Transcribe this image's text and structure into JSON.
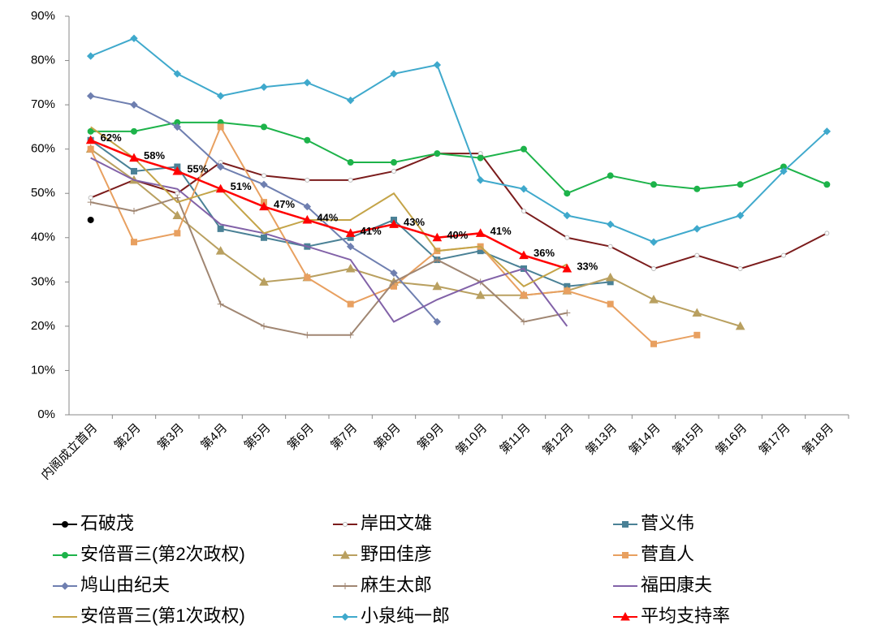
{
  "chart_data": {
    "type": "line",
    "categories": [
      "内阁成立首月",
      "第2月",
      "第3月",
      "第4月",
      "第5月",
      "第6月",
      "第7月",
      "第8月",
      "第9月",
      "第10月",
      "第11月",
      "第12月",
      "第13月",
      "第14月",
      "第15月",
      "第16月",
      "第17月",
      "第18月"
    ],
    "ylim": [
      0,
      90
    ],
    "yticks": [
      {
        "value": 0,
        "label": "0%"
      },
      {
        "value": 10,
        "label": "10%"
      },
      {
        "value": 20,
        "label": "20%"
      },
      {
        "value": 30,
        "label": "30%"
      },
      {
        "value": 40,
        "label": "40%"
      },
      {
        "value": 50,
        "label": "50%"
      },
      {
        "value": 60,
        "label": "60%"
      },
      {
        "value": 70,
        "label": "70%"
      },
      {
        "value": 80,
        "label": "80%"
      },
      {
        "value": 90,
        "label": "90%"
      }
    ],
    "grid": false,
    "series": [
      {
        "name": "石破茂",
        "color": "#000000",
        "marker": "circle",
        "values": [
          44,
          null,
          null,
          null,
          null,
          null,
          null,
          null,
          null,
          null,
          null,
          null,
          null,
          null,
          null,
          null,
          null,
          null
        ]
      },
      {
        "name": "岸田文雄",
        "color": "#7b1c1c",
        "marker": "hollow",
        "values": [
          49,
          53,
          50,
          57,
          54,
          53,
          53,
          55,
          59,
          59,
          46,
          40,
          38,
          33,
          36,
          33,
          36,
          41
        ]
      },
      {
        "name": "菅义伟",
        "color": "#4a8196",
        "marker": "square",
        "values": [
          62,
          55,
          56,
          42,
          40,
          38,
          40,
          44,
          35,
          37,
          33,
          29,
          30,
          null,
          null,
          null,
          null,
          null
        ]
      },
      {
        "name": "安倍晋三(第2次政权)",
        "color": "#1db34a",
        "marker": "circle",
        "values": [
          64,
          64,
          66,
          66,
          65,
          62,
          57,
          57,
          59,
          58,
          60,
          50,
          54,
          52,
          51,
          52,
          56,
          52
        ]
      },
      {
        "name": "野田佳彦",
        "color": "#b9a060",
        "marker": "triangle",
        "values": [
          60,
          53,
          45,
          37,
          30,
          31,
          33,
          30,
          29,
          27,
          27,
          28,
          31,
          26,
          23,
          20,
          null,
          null
        ]
      },
      {
        "name": "菅直人",
        "color": "#e8a060",
        "marker": "square",
        "values": [
          60,
          39,
          41,
          65,
          48,
          31,
          25,
          29,
          37,
          38,
          27,
          28,
          25,
          16,
          18,
          null,
          null,
          null
        ]
      },
      {
        "name": "鸠山由纪夫",
        "color": "#6f7fb0",
        "marker": "diamond",
        "values": [
          72,
          70,
          65,
          56,
          52,
          47,
          38,
          32,
          21,
          null,
          null,
          null,
          null,
          null,
          null,
          null,
          null,
          null
        ]
      },
      {
        "name": "麻生太郎",
        "color": "#a08672",
        "marker": "plus",
        "values": [
          48,
          46,
          49,
          25,
          20,
          18,
          18,
          30,
          35,
          30,
          21,
          23,
          null,
          null,
          null,
          null,
          null,
          null
        ]
      },
      {
        "name": "福田康夫",
        "color": "#8262a8",
        "marker": "none",
        "values": [
          58,
          53,
          51,
          43,
          41,
          38,
          35,
          21,
          26,
          30,
          33,
          20,
          null,
          null,
          null,
          null,
          null,
          null
        ]
      },
      {
        "name": "安倍晋三(第1次政权)",
        "color": "#c4a448",
        "marker": "none",
        "values": [
          65,
          58,
          48,
          51,
          41,
          44,
          44,
          50,
          37,
          38,
          29,
          34,
          null,
          null,
          null,
          null,
          null,
          null
        ]
      },
      {
        "name": "小泉纯一郎",
        "color": "#3fa9cc",
        "marker": "diamond",
        "values": [
          81,
          85,
          77,
          72,
          74,
          75,
          71,
          77,
          79,
          53,
          51,
          45,
          43,
          39,
          42,
          45,
          55,
          64
        ]
      },
      {
        "name": "平均支持率",
        "color": "#ff0000",
        "marker": "triangle",
        "values": [
          62,
          58,
          55,
          51,
          47,
          44,
          41,
          43,
          40,
          41,
          36,
          33,
          null,
          null,
          null,
          null,
          null,
          null
        ],
        "value_labels": [
          "62%",
          "58%",
          "55%",
          "51%",
          "47%",
          "44%",
          "41%",
          "43%",
          "40%",
          "41%",
          "36%",
          "33%",
          null,
          null,
          null,
          null,
          null,
          null
        ]
      }
    ]
  }
}
